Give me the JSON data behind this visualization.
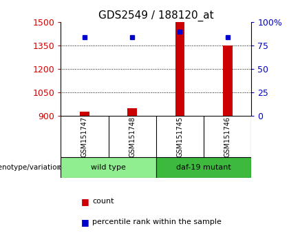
{
  "title": "GDS2549 / 188120_at",
  "samples": [
    "GSM151747",
    "GSM151748",
    "GSM151745",
    "GSM151746"
  ],
  "counts": [
    930,
    950,
    1500,
    1350
  ],
  "percentiles": [
    84,
    84,
    90,
    84
  ],
  "ylim_left": [
    900,
    1500
  ],
  "ylim_right": [
    0,
    100
  ],
  "yticks_left": [
    900,
    1050,
    1200,
    1350,
    1500
  ],
  "yticks_right": [
    0,
    25,
    50,
    75,
    100
  ],
  "groups": [
    {
      "label": "wild type",
      "samples": [
        0,
        1
      ],
      "color": "#90ee90"
    },
    {
      "label": "daf-19 mutant",
      "samples": [
        2,
        3
      ],
      "color": "#3dba3d"
    }
  ],
  "bar_color": "#cc0000",
  "point_color": "#0000cc",
  "bar_width": 0.2,
  "background_color": "#ffffff",
  "plot_bg": "#ffffff",
  "grid_color": "#000000",
  "axis_color_left": "#cc0000",
  "axis_color_right": "#0000cc",
  "xlabel_area_color": "#d3d3d3",
  "group_label": "genotype/variation",
  "title_fontsize": 11,
  "tick_fontsize": 9,
  "sample_fontsize": 7,
  "group_fontsize": 8,
  "legend_fontsize": 8
}
